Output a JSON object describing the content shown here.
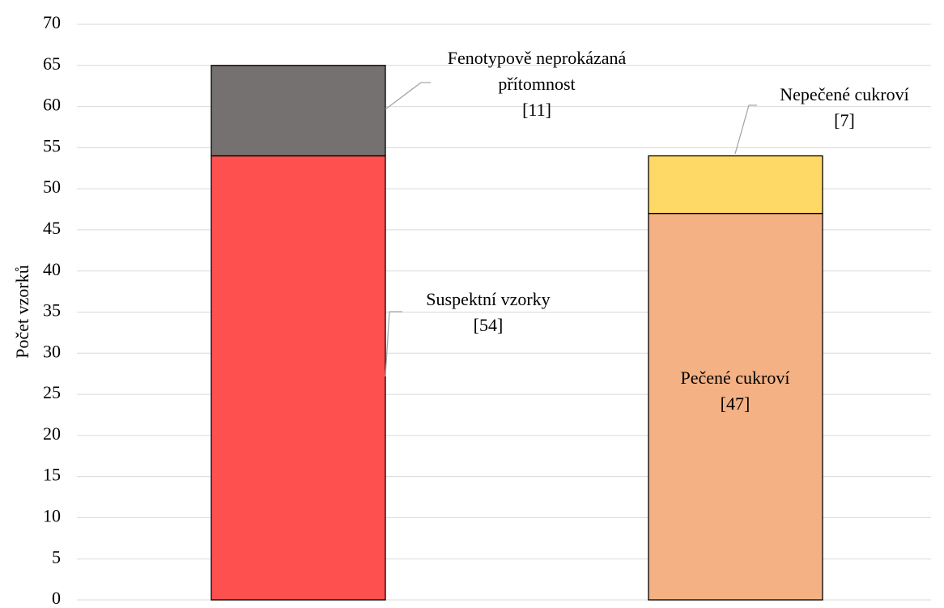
{
  "chart_data": {
    "type": "stacked_bar",
    "y_label": "Počet vzorků",
    "categories": [
      null,
      null
    ],
    "series": [
      {
        "name": "Suspektní vzorky",
        "color": "#ff5050",
        "values": [
          54,
          null
        ],
        "value_labels": [
          "[54]",
          null
        ]
      },
      {
        "name": "Fenotypově neprokázaná přítomnost",
        "color": "#767171",
        "values": [
          11,
          null
        ],
        "value_labels": [
          "[11]",
          null
        ]
      },
      {
        "name": "Pečené cukroví",
        "color": "#f4b183",
        "values": [
          null,
          47
        ],
        "value_labels": [
          null,
          "[47]"
        ]
      },
      {
        "name": "Nepečené cukroví",
        "color": "#ffd966",
        "values": [
          null,
          7
        ],
        "value_labels": [
          null,
          "[7]"
        ]
      }
    ],
    "ylim": [
      0,
      70
    ],
    "yticks": [
      0,
      5,
      10,
      15,
      20,
      25,
      30,
      35,
      40,
      45,
      50,
      55,
      60,
      65,
      70
    ],
    "grid": true
  }
}
